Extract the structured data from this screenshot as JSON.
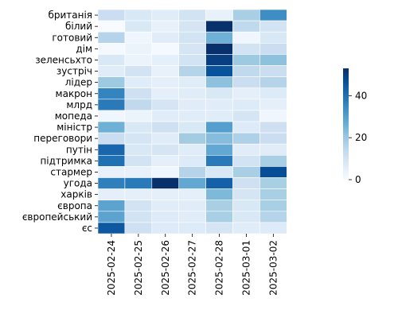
{
  "chart_data": {
    "type": "heatmap",
    "x": [
      "2025-02-24",
      "2025-02-25",
      "2025-02-26",
      "2025-02-27",
      "2025-02-28",
      "2025-03-01",
      "2025-03-02"
    ],
    "y": [
      "британія",
      "білий",
      "готовий",
      "дім",
      "зеленсьхто",
      "зустріч",
      "лідер",
      "макрон",
      "млрд",
      "мопеда",
      "міністр",
      "переговори",
      "путін",
      "підтримка",
      "стармер",
      "угода",
      "харків",
      "європа",
      "європейський",
      "єс"
    ],
    "values": [
      [
        12,
        8,
        6,
        10,
        4,
        18,
        34
      ],
      [
        0,
        8,
        4,
        9,
        53,
        14,
        10
      ],
      [
        16,
        2,
        6,
        10,
        26,
        2,
        8
      ],
      [
        1,
        3,
        1,
        9,
        53,
        10,
        12
      ],
      [
        8,
        3,
        5,
        10,
        50,
        20,
        22
      ],
      [
        6,
        10,
        4,
        16,
        46,
        14,
        12
      ],
      [
        20,
        6,
        5,
        6,
        22,
        12,
        16
      ],
      [
        36,
        11,
        5,
        6,
        8,
        5,
        7
      ],
      [
        38,
        14,
        9,
        6,
        6,
        7,
        5
      ],
      [
        2,
        3,
        6,
        6,
        6,
        9,
        2
      ],
      [
        26,
        8,
        11,
        8,
        30,
        7,
        11
      ],
      [
        12,
        9,
        6,
        19,
        23,
        17,
        12
      ],
      [
        42,
        8,
        9,
        6,
        28,
        6,
        6
      ],
      [
        40,
        10,
        5,
        7,
        38,
        10,
        18
      ],
      [
        4,
        4,
        2,
        16,
        8,
        18,
        47
      ],
      [
        37,
        38,
        53,
        28,
        43,
        11,
        18
      ],
      [
        5,
        5,
        5,
        5,
        24,
        9,
        18
      ],
      [
        29,
        10,
        6,
        6,
        18,
        8,
        18
      ],
      [
        29,
        10,
        7,
        6,
        18,
        8,
        16
      ],
      [
        45,
        11,
        7,
        7,
        9,
        6,
        7
      ]
    ],
    "vmin": 0,
    "vmax": 53,
    "colormap": "Blues",
    "colorbar_ticks": [
      0,
      20,
      40
    ],
    "cell_separator_color": "#ffffff"
  }
}
